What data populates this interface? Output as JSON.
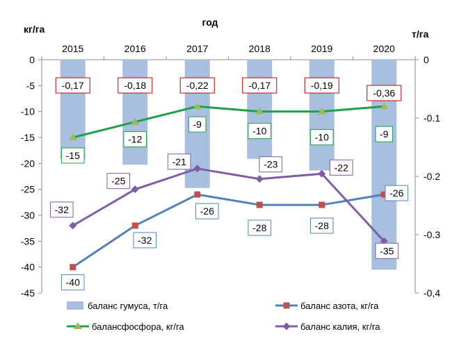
{
  "chart_data": {
    "type": "bar+line",
    "title": "год",
    "y_left_unit": "кг/га",
    "y_right_unit": "т/га",
    "categories": [
      "2015",
      "2016",
      "2017",
      "2018",
      "2019",
      "2020"
    ],
    "y_left_ticks": [
      "0",
      "-5",
      "-10",
      "-15",
      "-20",
      "-25",
      "-30",
      "-35",
      "-40",
      "-45"
    ],
    "y_right_ticks": [
      "0",
      "-0.1",
      "-0.2",
      "-0.3",
      "-0,4"
    ],
    "y_left_range": [
      -45,
      0
    ],
    "y_right_range": [
      -0.4,
      0
    ],
    "bars": {
      "name": "баланс гумуса, т/га",
      "axis": "right",
      "color": "#a9bfdf",
      "values": [
        -0.17,
        -0.18,
        -0.22,
        -0.17,
        -0.19,
        -0.36
      ],
      "labels": [
        "-0,17",
        "-0,18",
        "-0,22",
        "-0,17",
        "-0,19",
        "-0,36"
      ],
      "label_border": "#c00000"
    },
    "series": [
      {
        "name": "баланс азота, кг/га",
        "color": "#4f81bd",
        "marker_color": "#c0504d",
        "marker": "square",
        "values": [
          -40,
          -32,
          -26,
          -28,
          -28,
          -26
        ],
        "labels": [
          "-40",
          "-32",
          "-26",
          "-28",
          "-28",
          "-26"
        ],
        "label_border": "#4f81bd"
      },
      {
        "name": "балансфосфора, кг/га",
        "color": "#1ea04a",
        "marker_color": "#9bbb59",
        "marker": "triangle",
        "values": [
          -15,
          -12,
          -9,
          -10,
          -10,
          -9
        ],
        "labels": [
          "-15",
          "-12",
          "-9",
          "-10",
          "-10",
          "-9"
        ],
        "label_border": "#1ea04a"
      },
      {
        "name": "баланс калия, кг/га",
        "color": "#7e5ca6",
        "marker_color": "#7e5ca6",
        "marker": "diamond",
        "values": [
          -32,
          -25,
          -21,
          -23,
          -22,
          -35
        ],
        "labels": [
          "-32",
          "-25",
          "-21",
          "-23",
          "-22",
          "-35"
        ],
        "label_border": "#7e5ca6"
      }
    ],
    "legend_position": "bottom"
  }
}
